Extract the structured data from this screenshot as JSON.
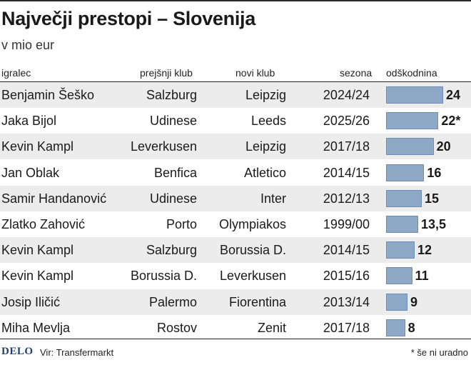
{
  "title": "Največji prestopi – Slovenija",
  "subtitle": "v mio eur",
  "headers": {
    "player": "igralec",
    "prev_club": "prejšnji klub",
    "new_club": "novi klub",
    "season": "sezona",
    "fee": "odškodnina"
  },
  "rows": [
    {
      "player": "Benjamin Šeško",
      "prev_club": "Salzburg",
      "new_club": "Leipzig",
      "season": "2024/24",
      "label": "24"
    },
    {
      "player": "Jaka Bijol",
      "prev_club": "Udinese",
      "new_club": "Leeds",
      "season": "2025/26",
      "label": "22*"
    },
    {
      "player": "Kevin Kampl",
      "prev_club": "Leverkusen",
      "new_club": "Leipzig",
      "season": "2017/18",
      "label": "20"
    },
    {
      "player": "Jan Oblak",
      "prev_club": "Benfica",
      "new_club": "Atletico",
      "season": "2014/15",
      "label": "16"
    },
    {
      "player": "Samir Handanović",
      "prev_club": "Udinese",
      "new_club": "Inter",
      "season": "2012/13",
      "label": "15"
    },
    {
      "player": "Zlatko Zahović",
      "prev_club": "Porto",
      "new_club": "Olympiakos",
      "season": "1999/00",
      "label": "13,5"
    },
    {
      "player": "Kevin Kampl",
      "prev_club": "Salzburg",
      "new_club": "Borussia D.",
      "season": "2014/15",
      "label": "12"
    },
    {
      "player": "Kevin Kampl",
      "prev_club": "Borussia D.",
      "new_club": "Leverkusen",
      "season": "2015/16",
      "label": "11"
    },
    {
      "player": "Josip Iličić",
      "prev_club": "Palermo",
      "new_club": "Fiorentina",
      "season": "2013/14",
      "label": "9"
    },
    {
      "player": "Miha Mevlja",
      "prev_club": "Rostov",
      "new_club": "Zenit",
      "season": "2017/18",
      "label": "8"
    }
  ],
  "chart_data": {
    "type": "bar",
    "orientation": "horizontal",
    "title": "Največji prestopi – Slovenija",
    "subtitle": "v mio eur",
    "categories": [
      "Benjamin Šeško",
      "Jaka Bijol",
      "Kevin Kampl",
      "Jan Oblak",
      "Samir Handanović",
      "Zlatko Zahović",
      "Kevin Kampl",
      "Kevin Kampl",
      "Josip Iličić",
      "Miha Mevlja"
    ],
    "values": [
      24,
      22,
      20,
      16,
      15,
      13.5,
      12,
      11,
      9,
      8
    ],
    "xlim": [
      0,
      24
    ],
    "bar_color": "#8ea8c8"
  },
  "footer": {
    "logo": "DELO",
    "source": "Vir: Transfermarkt",
    "note": "* še ni uradno"
  },
  "colors": {
    "bar": "#8ea8c8",
    "bar_border": "#6d8db5",
    "row_shade": "#ececec",
    "logo": "#1f3f73"
  }
}
